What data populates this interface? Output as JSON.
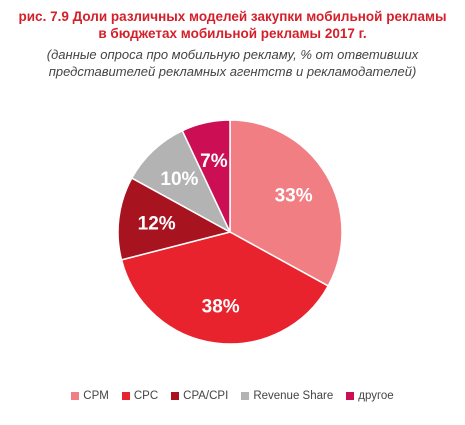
{
  "chart_data": {
    "type": "pie",
    "title_line1": "рис. 7.9 Доли различных моделей закупки мобильной рекламы",
    "title_line2": "в бюджетах мобильной рекламы 2017 г.",
    "subtitle_line1": "(данные опроса про мобильную рекламу, % от ответивших",
    "subtitle_line2": "представителей рекламных агентств и рекламодателей)",
    "slices": [
      {
        "name": "CPM",
        "value": 33,
        "label": "33%",
        "color": "#f07e83"
      },
      {
        "name": "CPC",
        "value": 38,
        "label": "38%",
        "color": "#e8232d"
      },
      {
        "name": "CPA/CPI",
        "value": 12,
        "label": "12%",
        "color": "#a81320"
      },
      {
        "name": "Revenue Share",
        "value": 10,
        "label": "10%",
        "color": "#b3b3b3"
      },
      {
        "name": "другое",
        "value": 7,
        "label": "7%",
        "color": "#cc0f55"
      }
    ],
    "legend_position": "bottom",
    "label_color": "#ffffff"
  }
}
